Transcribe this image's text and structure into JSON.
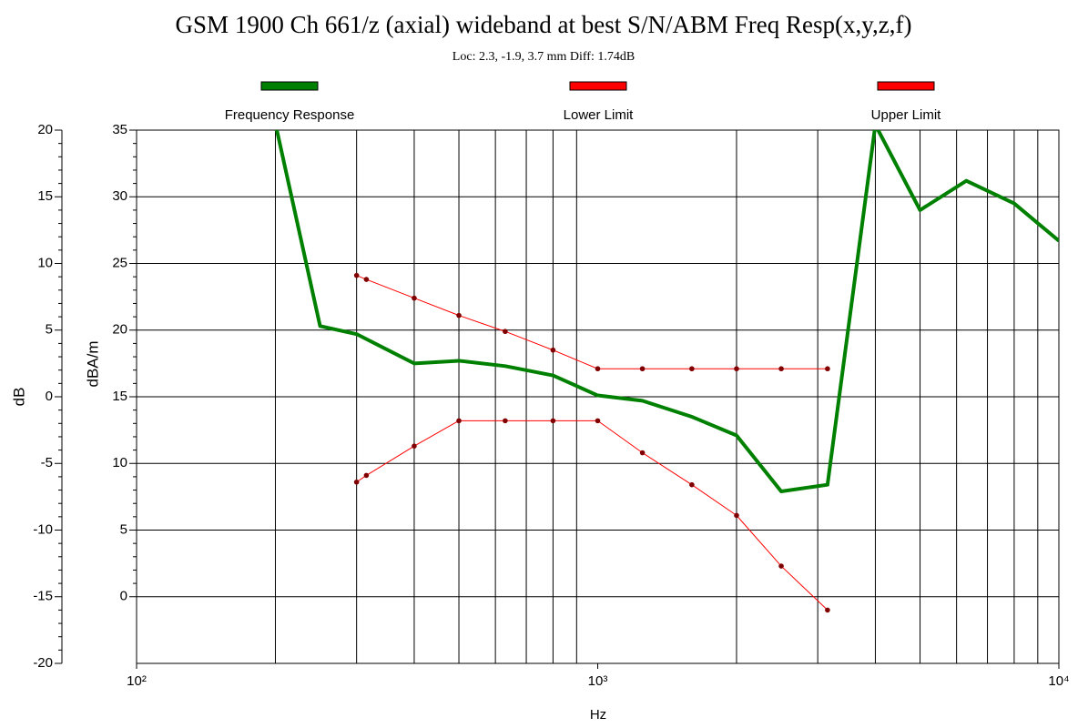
{
  "chart_data": {
    "type": "line",
    "title": "GSM 1900 Ch 661/z (axial) wideband at best S/N/ABM Freq Resp(x,y,z,f)",
    "subtitle": "Loc: 2.3, -1.9, 3.7 mm Diff: 1.74dB",
    "x_label": "Hz",
    "y_label": "dBA/m",
    "y2_label": "dB",
    "log_x": true,
    "grid": true,
    "legend_position": "top",
    "xlim": [
      100,
      10000
    ],
    "xticks": [
      {
        "value": 100,
        "label": "10²"
      },
      {
        "value": 1000,
        "label": "10³"
      },
      {
        "value": 10000,
        "label": "10⁴"
      }
    ],
    "xgrid": [
      200,
      300,
      400,
      500,
      600,
      700,
      800,
      900,
      2000,
      3000,
      4000,
      5000,
      6000,
      7000,
      8000,
      9000
    ],
    "ylim": [
      -5,
      35
    ],
    "yticks": [
      0,
      5,
      10,
      15,
      20,
      25,
      30,
      35
    ],
    "y2lim": [
      -20,
      20
    ],
    "y2ticks": [
      -20,
      -15,
      -10,
      -5,
      0,
      5,
      10,
      15,
      20
    ],
    "series": [
      {
        "name": "Frequency Response",
        "color": "#008000",
        "width": 4,
        "markers": false,
        "x": [
          200,
          250,
          300,
          400,
          500,
          630,
          800,
          1000,
          1250,
          1600,
          2000,
          2500,
          3150,
          4000,
          5000,
          6300,
          8000,
          10000
        ],
        "values": [
          35.5,
          20.3,
          19.7,
          17.5,
          17.7,
          17.3,
          16.6,
          15.1,
          14.7,
          13.5,
          12.1,
          7.9,
          8.4,
          35.4,
          29.0,
          31.2,
          29.5,
          26.7
        ]
      },
      {
        "name": "Lower Limit",
        "color": "#ff0000",
        "width": 1,
        "markers": true,
        "x": [
          300,
          315,
          400,
          500,
          630,
          800,
          1000,
          1250,
          1600,
          2000,
          2500,
          3150
        ],
        "values": [
          8.6,
          9.1,
          11.3,
          13.2,
          13.2,
          13.2,
          13.2,
          10.8,
          8.4,
          6.1,
          2.3,
          -1.0
        ]
      },
      {
        "name": "Upper Limit",
        "color": "#ff0000",
        "width": 1,
        "markers": true,
        "x": [
          300,
          315,
          400,
          500,
          630,
          800,
          1000,
          1250,
          1600,
          2000,
          2500,
          3150
        ],
        "values": [
          24.1,
          23.8,
          22.4,
          21.1,
          19.9,
          18.5,
          17.1,
          17.1,
          17.1,
          17.1,
          17.1,
          17.1
        ]
      }
    ]
  }
}
